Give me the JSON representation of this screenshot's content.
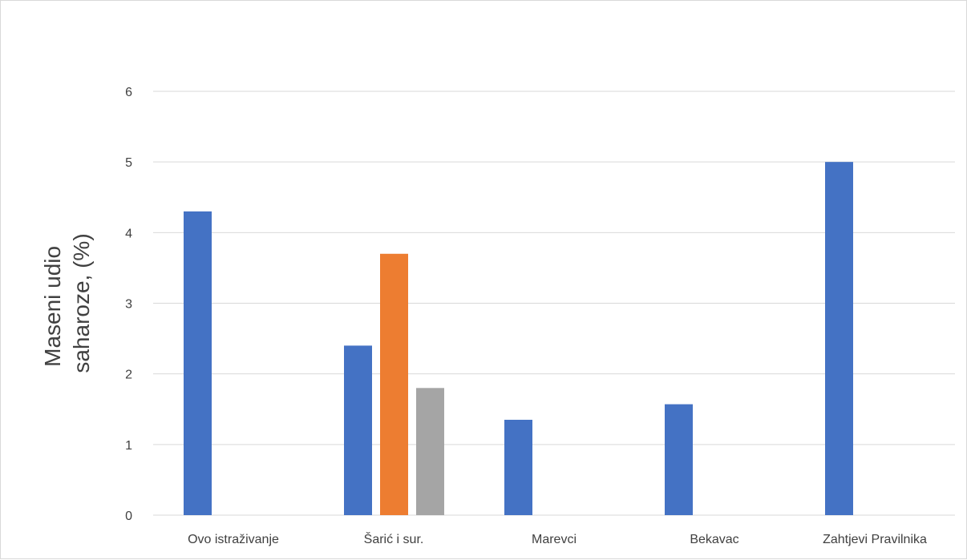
{
  "chart_data": {
    "type": "bar",
    "title": "",
    "xlabel": "",
    "ylabel_lines": [
      "Maseni udio",
      "saharoze, (%)"
    ],
    "ylim": [
      0,
      6
    ],
    "yticks": [
      "0",
      "1",
      "2",
      "3",
      "4",
      "5",
      "6"
    ],
    "grid": true,
    "legend": "none",
    "categories": [
      "Ovo istraživanje",
      "Šarić i sur.",
      "Marevci",
      "Bekavac",
      "Zahtjevi Pravilnika"
    ],
    "series": [
      {
        "color": "#4472c4",
        "values": [
          4.3,
          2.4,
          1.35,
          1.57,
          5.0
        ]
      },
      {
        "color": "#ed7d31",
        "values": [
          null,
          3.7,
          null,
          null,
          null
        ]
      },
      {
        "color": "#a5a5a5",
        "values": [
          null,
          1.8,
          null,
          null,
          null
        ]
      }
    ]
  }
}
